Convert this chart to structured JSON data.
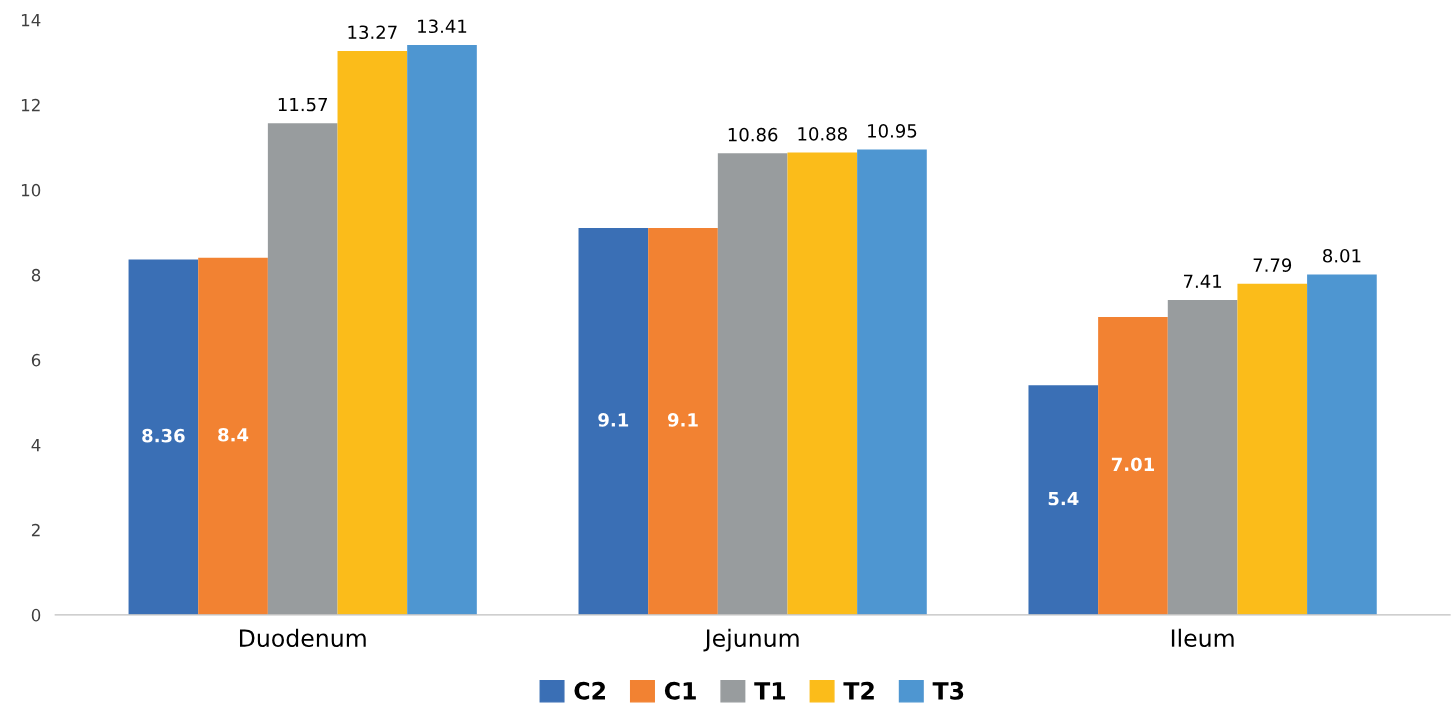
{
  "chart_data": {
    "type": "bar",
    "categories": [
      "Duodenum",
      "Jejunum",
      "Ileum"
    ],
    "series": [
      {
        "name": "C2",
        "color": "#3a6fb5",
        "values": [
          8.36,
          9.1,
          5.4
        ]
      },
      {
        "name": "C1",
        "color": "#f28232",
        "values": [
          8.4,
          9.1,
          7.01
        ]
      },
      {
        "name": "T1",
        "color": "#989c9e",
        "values": [
          11.57,
          10.86,
          7.41
        ]
      },
      {
        "name": "T2",
        "color": "#fbbc1a",
        "values": [
          13.27,
          10.88,
          7.79
        ]
      },
      {
        "name": "T3",
        "color": "#4e96d1",
        "values": [
          13.41,
          10.95,
          8.01
        ]
      }
    ],
    "ylim": [
      0,
      14
    ],
    "yticks": [
      0,
      2,
      4,
      6,
      8,
      10,
      12,
      14
    ],
    "data_labels": true,
    "grid": false,
    "legend": "bottom"
  }
}
